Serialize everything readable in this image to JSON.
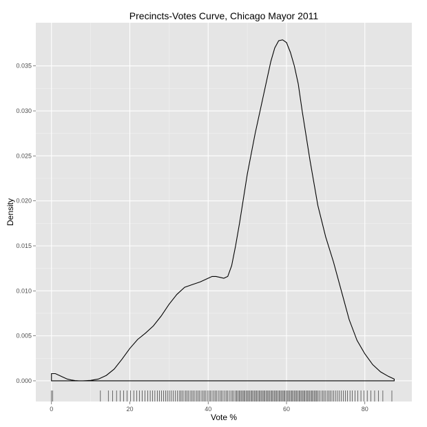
{
  "chart_data": {
    "type": "area",
    "title": "Precincts-Votes Curve, Chicago Mayor 2011",
    "xlabel": "Vote %",
    "ylabel": "Density",
    "xlim": [
      -4,
      92
    ],
    "ylim": [
      -0.0023,
      0.0398
    ],
    "x_ticks": [
      0,
      20,
      40,
      60,
      80
    ],
    "y_ticks": [
      0.0,
      0.005,
      0.01,
      0.015,
      0.02,
      0.025,
      0.03,
      0.035
    ],
    "y_tick_labels": [
      "0.000",
      "0.005",
      "0.010",
      "0.015",
      "0.020",
      "0.025",
      "0.030",
      "0.035"
    ],
    "x_tick_labels": [
      "0",
      "20",
      "40",
      "60",
      "80"
    ],
    "grid": true,
    "series": [
      {
        "x": [
          0,
          1,
          2,
          3,
          4,
          5,
          6,
          7,
          8,
          10,
          12,
          14,
          16,
          18,
          20,
          22,
          24,
          26,
          28,
          30,
          32,
          34,
          36,
          38,
          40,
          41,
          42,
          43,
          44,
          45,
          46,
          47,
          48,
          50,
          52,
          54,
          56,
          57,
          58,
          59,
          60,
          61,
          62,
          63,
          64,
          66,
          68,
          70,
          72,
          74,
          76,
          78,
          80,
          82,
          84,
          86,
          87.5
        ],
        "y": [
          0.0008,
          0.0008,
          0.0006,
          0.0004,
          0.0002,
          0.0001,
          3e-05,
          0.0,
          0.0,
          5e-05,
          0.0002,
          0.0006,
          0.0013,
          0.0024,
          0.0036,
          0.0046,
          0.0053,
          0.0061,
          0.0072,
          0.0085,
          0.0096,
          0.0104,
          0.0107,
          0.011,
          0.0114,
          0.0116,
          0.0116,
          0.0115,
          0.0114,
          0.0116,
          0.0128,
          0.015,
          0.0175,
          0.023,
          0.0275,
          0.0315,
          0.0355,
          0.037,
          0.0378,
          0.0379,
          0.0376,
          0.0365,
          0.035,
          0.033,
          0.03,
          0.0245,
          0.0195,
          0.016,
          0.0132,
          0.01,
          0.0068,
          0.0045,
          0.003,
          0.0018,
          0.001,
          0.0005,
          0.0002
        ]
      }
    ],
    "rug_x": [
      0,
      0.3,
      12.5,
      14.5,
      15.6,
      16.6,
      17.5,
      18.4,
      19.3,
      20.2,
      21.0,
      21.8,
      22.5,
      23.2,
      23.9,
      24.6,
      25.2,
      25.8,
      26.4,
      27.0,
      27.6,
      28.1,
      28.6,
      29.1,
      29.6,
      30.1,
      30.6,
      31.1,
      31.6,
      32.1,
      32.6,
      33.0,
      33.4,
      33.8,
      34.2,
      34.6,
      35.0,
      35.4,
      35.8,
      36.2,
      36.6,
      37.0,
      37.4,
      37.8,
      38.2,
      38.6,
      39.0,
      39.4,
      39.8,
      40.2,
      40.6,
      41.0,
      41.4,
      41.8,
      42.2,
      42.6,
      43.0,
      43.4,
      43.8,
      44.2,
      44.6,
      45.0,
      45.4,
      45.8,
      46.2,
      46.6,
      47.0,
      47.3,
      47.6,
      47.9,
      48.2,
      48.5,
      48.8,
      49.1,
      49.4,
      49.7,
      50.0,
      50.3,
      50.6,
      50.9,
      51.2,
      51.5,
      51.8,
      52.1,
      52.4,
      52.7,
      53.0,
      53.3,
      53.6,
      53.9,
      54.2,
      54.5,
      54.8,
      55.1,
      55.4,
      55.7,
      56.0,
      56.3,
      56.6,
      56.9,
      57.2,
      57.5,
      57.8,
      58.1,
      58.4,
      58.7,
      59.0,
      59.3,
      59.6,
      59.9,
      60.2,
      60.5,
      60.8,
      61.1,
      61.4,
      61.7,
      62.0,
      62.3,
      62.6,
      62.9,
      63.2,
      63.5,
      63.8,
      64.1,
      64.4,
      64.7,
      65.0,
      65.3,
      65.6,
      65.9,
      66.2,
      66.5,
      66.8,
      67.1,
      67.4,
      67.7,
      68.0,
      68.4,
      68.8,
      69.2,
      69.6,
      70.0,
      70.4,
      70.8,
      71.2,
      71.6,
      72.0,
      72.5,
      73.0,
      73.5,
      74.0,
      74.5,
      75.0,
      75.6,
      76.2,
      76.8,
      77.5,
      78.2,
      79.0,
      79.8,
      80.6,
      81.5,
      82.5,
      83.5,
      84.6,
      86.9
    ]
  }
}
